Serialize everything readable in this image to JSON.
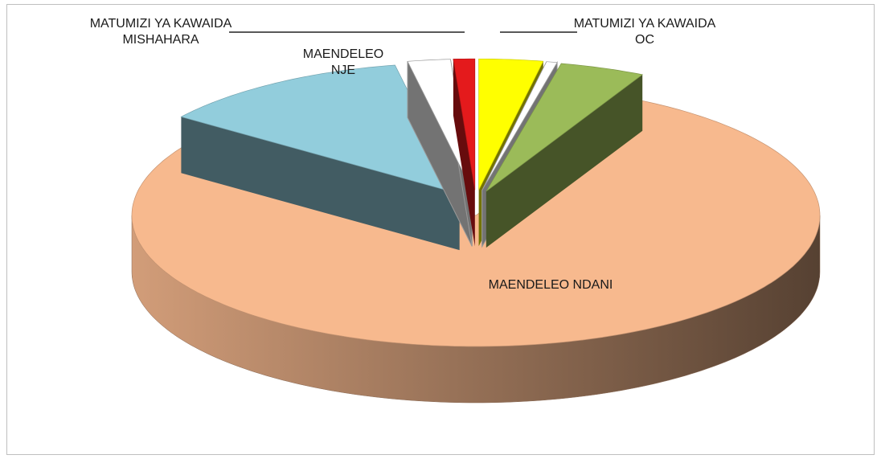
{
  "chart_data": {
    "type": "pie3d",
    "categories": [
      "MATUMIZI YA KAWAIDA OC",
      null,
      null,
      "MAENDELEO NDANI",
      "MAENDELEO NJE",
      null,
      "MATUMIZI YA KAWAIDA MISHAHARA"
    ],
    "values": [
      3,
      0.5,
      4,
      77.5,
      12,
      2,
      1
    ],
    "colors": [
      "#ffff00",
      "#ffffff",
      "#9bbb59",
      "#f7b98e",
      "#92cddc",
      "#ffffff",
      "#e41a1c"
    ]
  }
}
